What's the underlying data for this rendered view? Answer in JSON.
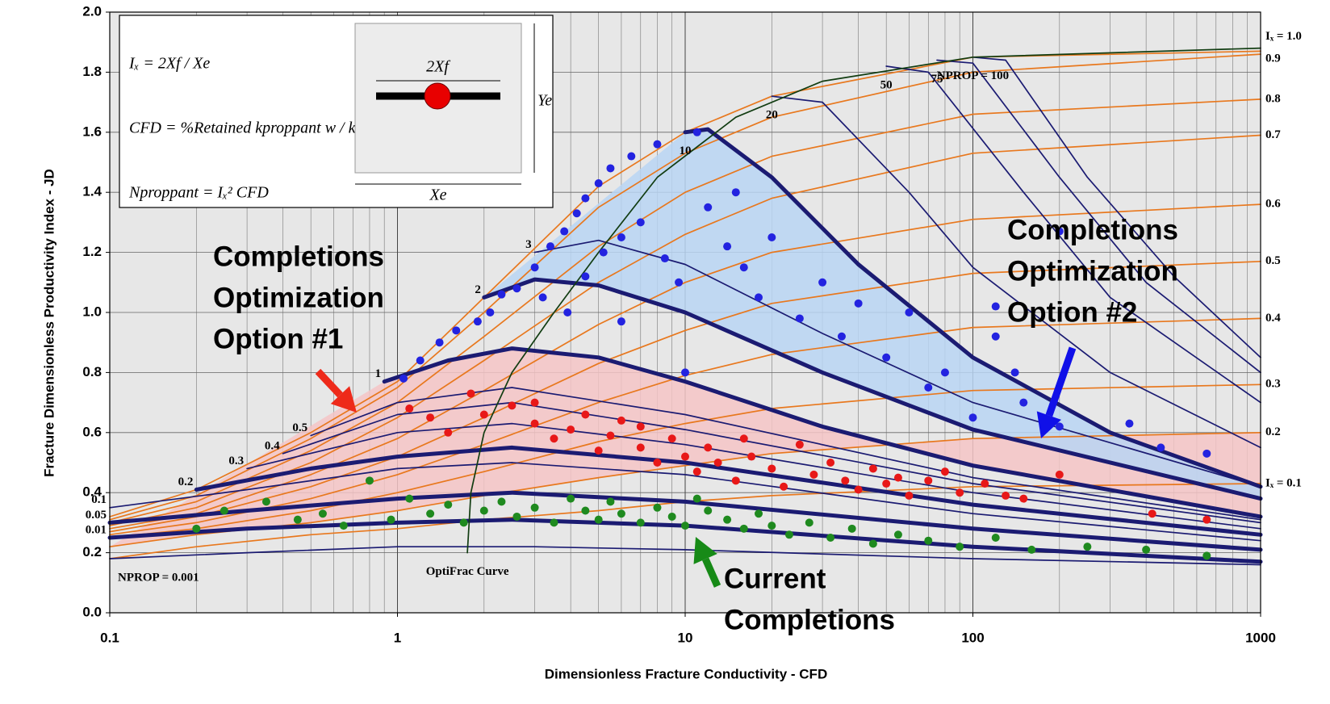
{
  "chart_data": {
    "type": "line",
    "x_label": "Dimensionless Fracture Conductivity - CFD",
    "y_label": "Fracture Dimensionless Productivity Index - JD",
    "xlog": true,
    "xlim": [
      0.1,
      1000
    ],
    "xticks": [
      0.1,
      1,
      10,
      100,
      1000
    ],
    "ylim": [
      0,
      2
    ],
    "yticks": [
      {
        "value": 0,
        "label": "0.0"
      },
      0.2,
      0.4,
      0.6,
      0.8,
      {
        "value": 1,
        "label": "1.0"
      },
      1.2,
      1.4,
      1.6,
      1.8,
      {
        "value": 2,
        "label": "2.0"
      }
    ],
    "grid": true,
    "series": [
      {
        "name": "Iₓ = 1.0",
        "type": "line",
        "color": "#e8781e",
        "thick": false,
        "label_at": "end",
        "x": [
          0.1,
          0.2,
          0.5,
          1,
          2,
          5,
          10,
          20,
          100,
          1000
        ],
        "values": [
          0.32,
          0.41,
          0.6,
          0.77,
          1.05,
          1.42,
          1.6,
          1.72,
          1.85,
          1.87
        ]
      },
      {
        "name": "0.9",
        "type": "line",
        "color": "#e8781e",
        "thick": false,
        "label_at": "end",
        "x": [
          0.1,
          0.2,
          0.5,
          1,
          2,
          5,
          10,
          20,
          100,
          1000
        ],
        "values": [
          0.31,
          0.39,
          0.58,
          0.75,
          1.0,
          1.35,
          1.53,
          1.65,
          1.8,
          1.86
        ]
      },
      {
        "name": "0.8",
        "type": "line",
        "color": "#e8781e",
        "thick": false,
        "label_at": "end",
        "x": [
          0.1,
          0.2,
          0.5,
          1,
          2,
          5,
          10,
          20,
          100,
          1000
        ],
        "values": [
          0.3,
          0.37,
          0.54,
          0.7,
          0.92,
          1.22,
          1.4,
          1.52,
          1.66,
          1.71
        ]
      },
      {
        "name": "0.7",
        "type": "line",
        "color": "#e8781e",
        "thick": false,
        "label_at": "end",
        "x": [
          0.1,
          0.2,
          0.5,
          1,
          2,
          5,
          10,
          20,
          100,
          1000
        ],
        "values": [
          0.29,
          0.35,
          0.5,
          0.65,
          0.84,
          1.1,
          1.26,
          1.38,
          1.53,
          1.59
        ]
      },
      {
        "name": "0.6",
        "type": "line",
        "color": "#e8781e",
        "thick": false,
        "label_at": "end",
        "x": [
          0.1,
          0.2,
          0.5,
          1,
          2,
          5,
          10,
          20,
          100,
          1000
        ],
        "values": [
          0.28,
          0.33,
          0.46,
          0.58,
          0.74,
          0.96,
          1.1,
          1.2,
          1.31,
          1.36
        ]
      },
      {
        "name": "0.5",
        "type": "line",
        "color": "#e8781e",
        "thick": false,
        "label_at": "end",
        "x": [
          0.1,
          0.2,
          0.5,
          1,
          2,
          5,
          10,
          20,
          100,
          1000
        ],
        "values": [
          0.27,
          0.32,
          0.42,
          0.52,
          0.65,
          0.83,
          0.94,
          1.03,
          1.13,
          1.17
        ]
      },
      {
        "name": "0.4",
        "type": "line",
        "color": "#e8781e",
        "thick": false,
        "label_at": "end",
        "x": [
          0.1,
          0.2,
          0.5,
          1,
          2,
          5,
          10,
          20,
          100,
          1000
        ],
        "values": [
          0.26,
          0.3,
          0.38,
          0.46,
          0.56,
          0.7,
          0.79,
          0.86,
          0.95,
          0.98
        ]
      },
      {
        "name": "0.3",
        "type": "line",
        "color": "#e8781e",
        "thick": false,
        "label_at": "end",
        "x": [
          0.1,
          0.2,
          0.5,
          1,
          2,
          5,
          10,
          20,
          100,
          1000
        ],
        "values": [
          0.25,
          0.28,
          0.34,
          0.4,
          0.47,
          0.57,
          0.63,
          0.68,
          0.74,
          0.76
        ]
      },
      {
        "name": "0.2",
        "type": "line",
        "color": "#e8781e",
        "thick": false,
        "label_at": "end",
        "x": [
          0.1,
          0.2,
          0.5,
          1,
          2,
          5,
          10,
          20,
          100,
          1000
        ],
        "values": [
          0.22,
          0.26,
          0.3,
          0.34,
          0.39,
          0.45,
          0.49,
          0.53,
          0.58,
          0.6
        ]
      },
      {
        "name": "Iₓ = 0.1",
        "type": "line",
        "color": "#e8781e",
        "thick": false,
        "label_at": "end",
        "x": [
          0.1,
          0.2,
          0.5,
          1,
          2,
          5,
          10,
          20,
          100,
          1000
        ],
        "values": [
          0.18,
          0.22,
          0.26,
          0.28,
          0.31,
          0.34,
          0.37,
          0.39,
          0.42,
          0.43
        ]
      },
      {
        "name": "NPROP = 0.001",
        "type": "line",
        "color": "#1b1b72",
        "thick": false,
        "label_at": "below-right",
        "x": [
          0.1,
          0.3,
          1,
          3,
          10,
          100,
          1000
        ],
        "values": [
          0.18,
          0.2,
          0.22,
          0.22,
          0.21,
          0.18,
          0.16
        ]
      },
      {
        "name": "0.01",
        "type": "line",
        "color": "#1b1b72",
        "thick": true,
        "label_at": "start",
        "x": [
          0.1,
          0.3,
          1,
          2.5,
          10,
          100,
          1000
        ],
        "values": [
          0.25,
          0.28,
          0.3,
          0.31,
          0.29,
          0.22,
          0.17
        ]
      },
      {
        "name": "0.05",
        "type": "line",
        "color": "#1b1b72",
        "thick": true,
        "label_at": "start",
        "x": [
          0.1,
          0.3,
          1,
          2.5,
          10,
          100,
          1000
        ],
        "values": [
          0.3,
          0.34,
          0.38,
          0.4,
          0.37,
          0.28,
          0.21
        ]
      },
      {
        "name": "0.1",
        "type": "line",
        "color": "#1b1b72",
        "thick": false,
        "label_at": "start",
        "x": [
          0.1,
          0.3,
          1,
          2.5,
          10,
          100,
          1000
        ],
        "values": [
          0.35,
          0.41,
          0.48,
          0.5,
          0.46,
          0.33,
          0.24
        ]
      },
      {
        "name": "0.2",
        "type": "line",
        "color": "#1b1b72",
        "thick": true,
        "label_at": "start",
        "x": [
          0.2,
          0.5,
          1,
          2.5,
          10,
          100,
          1000
        ],
        "values": [
          0.41,
          0.48,
          0.52,
          0.55,
          0.5,
          0.36,
          0.26
        ]
      },
      {
        "name": "0.3",
        "type": "line",
        "color": "#1b1b72",
        "thick": false,
        "label_at": "start",
        "x": [
          0.3,
          1,
          2.5,
          10,
          100,
          1000
        ],
        "values": [
          0.48,
          0.6,
          0.63,
          0.56,
          0.4,
          0.28
        ]
      },
      {
        "name": "0.4",
        "type": "line",
        "color": "#1b1b72",
        "thick": false,
        "label_at": "start",
        "x": [
          0.4,
          1,
          2.5,
          10,
          100,
          1000
        ],
        "values": [
          0.53,
          0.66,
          0.7,
          0.61,
          0.43,
          0.3
        ]
      },
      {
        "name": "0.5",
        "type": "line",
        "color": "#1b1b72",
        "thick": false,
        "label_at": "start",
        "x": [
          0.5,
          1,
          2.5,
          10,
          100,
          1000
        ],
        "values": [
          0.59,
          0.7,
          0.75,
          0.66,
          0.45,
          0.31
        ]
      },
      {
        "name": "1",
        "type": "line",
        "color": "#1b1b72",
        "thick": true,
        "label_at": "start",
        "fill": "#f4c4c6",
        "fill_to": "0.2",
        "x": [
          0.9,
          1.5,
          2.5,
          5,
          10,
          30,
          100,
          1000
        ],
        "values": [
          0.77,
          0.84,
          0.88,
          0.85,
          0.77,
          0.62,
          0.49,
          0.32
        ]
      },
      {
        "name": "2",
        "type": "line",
        "color": "#1b1b72",
        "thick": true,
        "label_at": "start",
        "x": [
          2,
          3,
          5,
          10,
          30,
          100,
          1000
        ],
        "values": [
          1.05,
          1.11,
          1.09,
          1.0,
          0.8,
          0.61,
          0.38
        ]
      },
      {
        "name": "3",
        "type": "line",
        "color": "#1b1b72",
        "thick": false,
        "label_at": "start",
        "x": [
          3,
          5,
          10,
          30,
          100,
          1000
        ],
        "values": [
          1.2,
          1.24,
          1.16,
          0.93,
          0.7,
          0.42
        ]
      },
      {
        "name": "10",
        "type": "line",
        "color": "#1b1b72",
        "thick": true,
        "label_at": "below",
        "fill": "#b9d5f3",
        "fill_to": "2",
        "x": [
          10,
          12,
          20,
          40,
          100,
          300,
          1000
        ],
        "values": [
          1.6,
          1.61,
          1.45,
          1.16,
          0.85,
          0.6,
          0.42
        ]
      },
      {
        "name": "20",
        "type": "line",
        "color": "#1b1b72",
        "thick": false,
        "label_at": "below",
        "x": [
          20,
          30,
          60,
          100,
          300,
          1000
        ],
        "values": [
          1.72,
          1.7,
          1.4,
          1.15,
          0.8,
          0.55
        ]
      },
      {
        "name": "50",
        "type": "line",
        "color": "#1b1b72",
        "thick": false,
        "label_at": "below",
        "x": [
          50,
          70,
          150,
          300,
          1000
        ],
        "values": [
          1.82,
          1.8,
          1.4,
          1.05,
          0.7
        ]
      },
      {
        "name": "75",
        "type": "line",
        "color": "#1b1b72",
        "thick": false,
        "label_at": "below",
        "x": [
          75,
          100,
          200,
          400,
          1000
        ],
        "values": [
          1.84,
          1.83,
          1.45,
          1.1,
          0.8
        ]
      },
      {
        "name": "NPROP = 100",
        "type": "line",
        "color": "#1b1b72",
        "thick": false,
        "label_at": "below",
        "x": [
          100,
          130,
          250,
          500,
          1000
        ],
        "values": [
          1.85,
          1.84,
          1.45,
          1.12,
          0.85
        ]
      },
      {
        "name": "OptiFrac Curve",
        "type": "line",
        "color": "#123d12",
        "thick": false,
        "label_at": "below",
        "x": [
          1.75,
          1.8,
          2,
          2.5,
          3.5,
          5,
          8,
          15,
          30,
          100,
          1000
        ],
        "values": [
          0.2,
          0.4,
          0.6,
          0.8,
          1.0,
          1.2,
          1.45,
          1.65,
          1.77,
          1.85,
          1.88
        ]
      },
      {
        "type": "scatter",
        "color": "#2323e0",
        "x": [
          1.05,
          1.2,
          1.4,
          1.6,
          1.9,
          2.1,
          2.3,
          2.6,
          3.0,
          3.4,
          3.8,
          4.2,
          4.5,
          5.0,
          5.5,
          6.5,
          8,
          11,
          3.2,
          3.9,
          4.5,
          5.2,
          6.0,
          7,
          8.5,
          9.5,
          12,
          14,
          16,
          18,
          20,
          25,
          30,
          35,
          40,
          50,
          60,
          70,
          80,
          100,
          120,
          150,
          200,
          200,
          350,
          450,
          650,
          10,
          6,
          15,
          120,
          140
        ],
        "values": [
          0.78,
          0.84,
          0.9,
          0.94,
          0.97,
          1.0,
          1.06,
          1.08,
          1.15,
          1.22,
          1.27,
          1.33,
          1.38,
          1.43,
          1.48,
          1.52,
          1.56,
          1.6,
          1.05,
          1.0,
          1.12,
          1.2,
          1.25,
          1.3,
          1.18,
          1.1,
          1.35,
          1.22,
          1.15,
          1.05,
          1.25,
          0.98,
          1.1,
          0.92,
          1.03,
          0.85,
          1.0,
          0.75,
          0.8,
          0.65,
          0.92,
          0.7,
          1.27,
          0.62,
          0.63,
          0.55,
          0.53,
          0.8,
          0.97,
          1.4,
          1.02,
          0.8
        ]
      },
      {
        "type": "scatter",
        "color": "#e81818",
        "x": [
          1.1,
          1.3,
          1.5,
          1.8,
          2.0,
          2.5,
          3,
          3.5,
          4,
          4.5,
          5,
          5.5,
          6,
          7,
          8,
          9,
          10,
          11,
          12,
          13,
          15,
          17,
          20,
          22,
          25,
          28,
          32,
          36,
          40,
          45,
          50,
          55,
          60,
          70,
          80,
          90,
          110,
          130,
          150,
          200,
          420,
          650,
          3,
          7,
          16
        ],
        "values": [
          0.68,
          0.65,
          0.6,
          0.73,
          0.66,
          0.69,
          0.63,
          0.58,
          0.61,
          0.66,
          0.54,
          0.59,
          0.64,
          0.55,
          0.5,
          0.58,
          0.52,
          0.47,
          0.55,
          0.5,
          0.44,
          0.52,
          0.48,
          0.42,
          0.56,
          0.46,
          0.5,
          0.44,
          0.41,
          0.48,
          0.43,
          0.45,
          0.39,
          0.44,
          0.47,
          0.4,
          0.43,
          0.39,
          0.38,
          0.46,
          0.33,
          0.31,
          0.7,
          0.62,
          0.58
        ]
      },
      {
        "type": "scatter",
        "color": "#1f8a1f",
        "x": [
          0.25,
          0.35,
          0.45,
          0.55,
          0.65,
          0.8,
          0.95,
          1.1,
          1.3,
          1.5,
          1.7,
          2.0,
          2.3,
          2.6,
          3,
          3.5,
          4,
          4.5,
          5,
          5.5,
          6,
          7,
          8,
          9,
          10,
          11,
          12,
          14,
          16,
          18,
          20,
          23,
          27,
          32,
          38,
          45,
          55,
          70,
          90,
          120,
          160,
          250,
          400,
          650,
          0.2
        ],
        "values": [
          0.34,
          0.37,
          0.31,
          0.33,
          0.29,
          0.44,
          0.31,
          0.38,
          0.33,
          0.36,
          0.3,
          0.34,
          0.37,
          0.32,
          0.35,
          0.3,
          0.38,
          0.34,
          0.31,
          0.37,
          0.33,
          0.3,
          0.35,
          0.32,
          0.29,
          0.38,
          0.34,
          0.31,
          0.28,
          0.33,
          0.29,
          0.26,
          0.3,
          0.25,
          0.28,
          0.23,
          0.26,
          0.24,
          0.22,
          0.25,
          0.21,
          0.22,
          0.21,
          0.19,
          0.28
        ]
      }
    ],
    "annotations": [
      {
        "lines": [
          "Completions",
          "Optimization",
          "Option #1"
        ],
        "arrow_color": "#ee2a1a"
      },
      {
        "lines": [
          "Completions",
          "Optimization",
          "Option #2"
        ],
        "arrow_color": "#1010e8"
      },
      {
        "lines": [
          "Current",
          "Completions"
        ],
        "arrow_color": "#178a17"
      }
    ],
    "inset": {
      "formulas": [
        "Iₓ = 2Xf / Xe",
        "CFD = %Retained kproppant w / kXf",
        "Nproppant = Iₓ² CFD"
      ],
      "fracture_label": "2Xf",
      "height_label": "Ye",
      "width_label": "Xe"
    }
  }
}
